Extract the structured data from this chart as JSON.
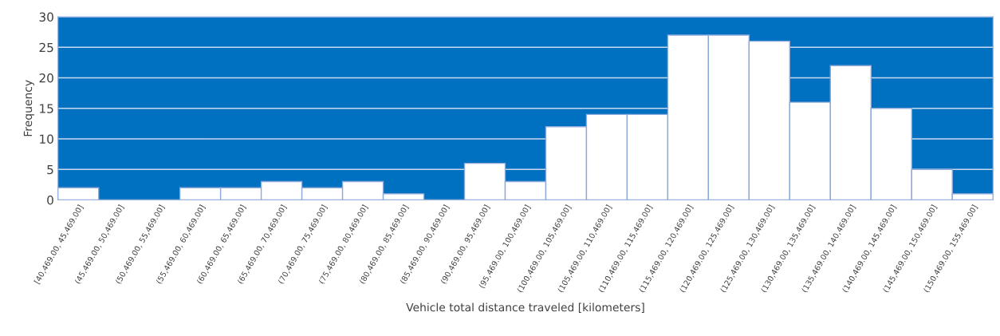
{
  "chart_data": {
    "type": "bar",
    "xlabel": "Vehicle total distance traveled [kilometers]",
    "ylabel": "Frequency",
    "categories": [
      "[40,469.00, 45,469.00]",
      "(45,469.00, 50,469.00]",
      "(50,469.00, 55,469.00]",
      "(55,469.00, 60,469.00]",
      "(60,469.00, 65,469.00]",
      "(65,469.00, 70,469.00]",
      "(70,469.00, 75,469.00]",
      "(75,469.00, 80,469.00]",
      "(80,469.00, 85,469.00]",
      "(85,469.00, 90,469.00]",
      "(90,469.00, 95,469.00]",
      "(95,469.00, 100,469.00]",
      "(100,469.00, 105,469.00]",
      "(105,469.00, 110,469.00]",
      "(110,469.00, 115,469.00]",
      "(115,469.00, 120,469.00]",
      "(120,469.00, 125,469.00]",
      "(125,469.00, 130,469.00]",
      "(130,469.00, 135,469.00]",
      "(135,469.00, 140,469.00]",
      "(140,469.00, 145,469.00]",
      "(145,469.00, 150,469.00]",
      "(150,469.00, 155,469.00]"
    ],
    "values": [
      2,
      0,
      0,
      2,
      2,
      3,
      2,
      3,
      1,
      0,
      6,
      3,
      12,
      14,
      14,
      27,
      27,
      26,
      16,
      22,
      15,
      5,
      1
    ],
    "color": "#ffffff",
    "ylim": [
      0,
      30
    ],
    "yticks": [
      0,
      5,
      10,
      15,
      20,
      25,
      30
    ],
    "grid": "y",
    "legend": false
  }
}
